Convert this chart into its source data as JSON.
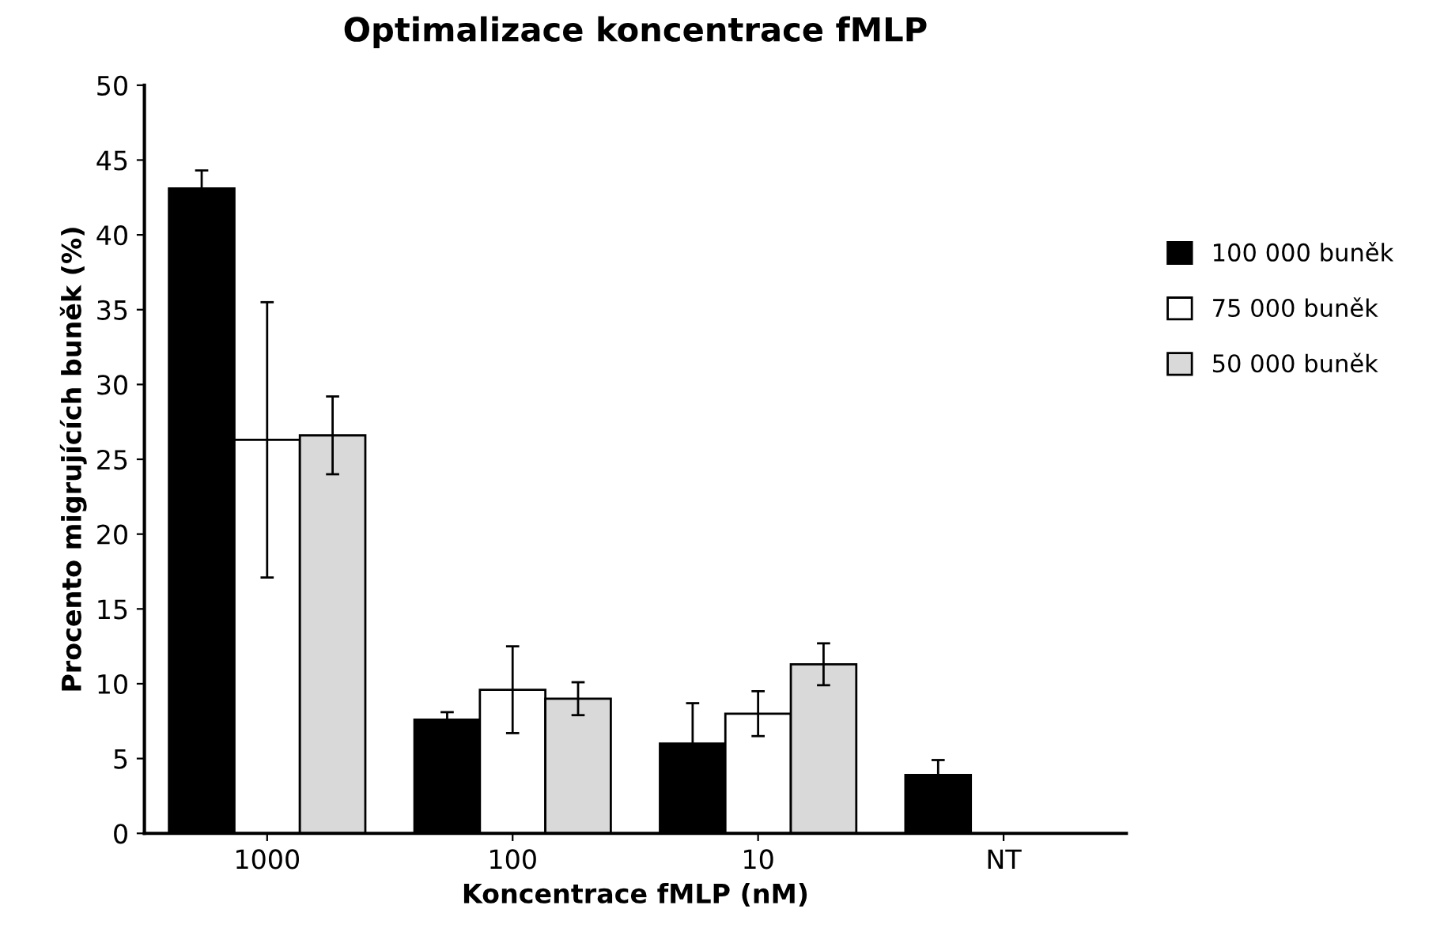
{
  "chart_data": {
    "type": "bar",
    "title": "Optimalizace koncentrace fMLP",
    "xlabel": "Koncentrace fMLP (nM)",
    "ylabel": "Procento migrujících buněk (%)",
    "categories": [
      "1000",
      "100",
      "10",
      "NT"
    ],
    "series": [
      {
        "name": "100 000 buněk",
        "color": "#000000",
        "values": [
          43.1,
          7.6,
          6.0,
          3.9
        ],
        "errors": [
          1.2,
          0.5,
          2.7,
          1.0
        ]
      },
      {
        "name": "75 000 buněk",
        "color": "#ffffff",
        "values": [
          26.3,
          9.6,
          8.0,
          null
        ],
        "errors": [
          9.2,
          2.9,
          1.5,
          null
        ]
      },
      {
        "name": "50 000 buněk",
        "color": "#d9d9d9",
        "values": [
          26.6,
          9.0,
          11.3,
          null
        ],
        "errors": [
          2.6,
          1.1,
          1.4,
          null
        ]
      }
    ],
    "ylim": [
      0,
      50
    ],
    "yticks": [
      0,
      5,
      10,
      15,
      20,
      25,
      30,
      35,
      40,
      45,
      50
    ],
    "legend": "right",
    "grid": false
  }
}
